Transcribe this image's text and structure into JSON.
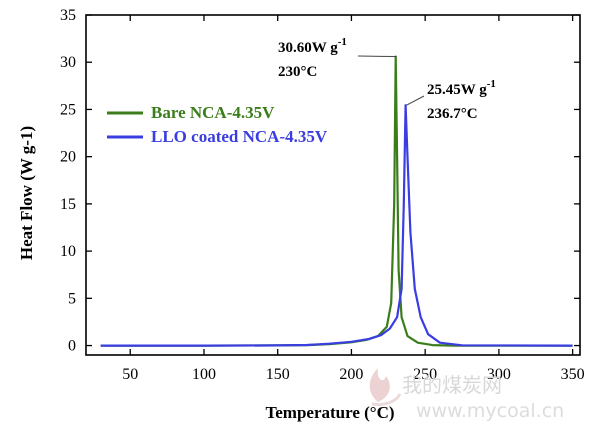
{
  "chart_data": {
    "type": "line",
    "xlabel": "Temperature (°C)",
    "ylabel": "Heat Flow (W g-1)",
    "xlim": [
      20,
      355
    ],
    "ylim": [
      -1,
      35
    ],
    "xticks": [
      50,
      100,
      150,
      200,
      250,
      300,
      350
    ],
    "yticks": [
      0,
      5,
      10,
      15,
      20,
      25,
      30,
      35
    ],
    "grid": false,
    "legend_position": "middle-left",
    "series": [
      {
        "name": "Bare NCA-4.35V",
        "color": "#3a7d1a",
        "points": [
          [
            30,
            0
          ],
          [
            100,
            0
          ],
          [
            150,
            0.02
          ],
          [
            170,
            0.05
          ],
          [
            185,
            0.15
          ],
          [
            200,
            0.35
          ],
          [
            210,
            0.6
          ],
          [
            218,
            1.0
          ],
          [
            224,
            2.0
          ],
          [
            227,
            4.5
          ],
          [
            229,
            15
          ],
          [
            230,
            30.6
          ],
          [
            231,
            20
          ],
          [
            232,
            8
          ],
          [
            234,
            3
          ],
          [
            238,
            1.0
          ],
          [
            245,
            0.3
          ],
          [
            255,
            0.05
          ],
          [
            270,
            0
          ],
          [
            350,
            0
          ]
        ]
      },
      {
        "name": "LLO coated NCA-4.35V",
        "color": "#3a3de0",
        "points": [
          [
            30,
            0
          ],
          [
            100,
            0
          ],
          [
            150,
            0.02
          ],
          [
            170,
            0.06
          ],
          [
            185,
            0.2
          ],
          [
            200,
            0.4
          ],
          [
            212,
            0.7
          ],
          [
            220,
            1.1
          ],
          [
            226,
            1.8
          ],
          [
            231,
            3.0
          ],
          [
            234,
            6
          ],
          [
            235.5,
            15
          ],
          [
            236.7,
            25.45
          ],
          [
            238,
            20
          ],
          [
            240,
            12
          ],
          [
            243,
            6
          ],
          [
            247,
            3
          ],
          [
            252,
            1.2
          ],
          [
            260,
            0.3
          ],
          [
            275,
            0.03
          ],
          [
            350,
            0
          ]
        ]
      }
    ],
    "annotations": [
      {
        "value": "30.60W g",
        "superscript": "-1",
        "temp": "230°C",
        "x": 230,
        "y": 30.6,
        "series": 0
      },
      {
        "value": "25.45W g",
        "superscript": "-1",
        "temp": "236.7°C",
        "x": 236.7,
        "y": 25.45,
        "series": 1
      }
    ]
  },
  "watermark": {
    "text": "我的煤炭网",
    "url": "www.mycoal.cn",
    "flame_colors": [
      "#e8c8c8",
      "#f0dede"
    ]
  }
}
